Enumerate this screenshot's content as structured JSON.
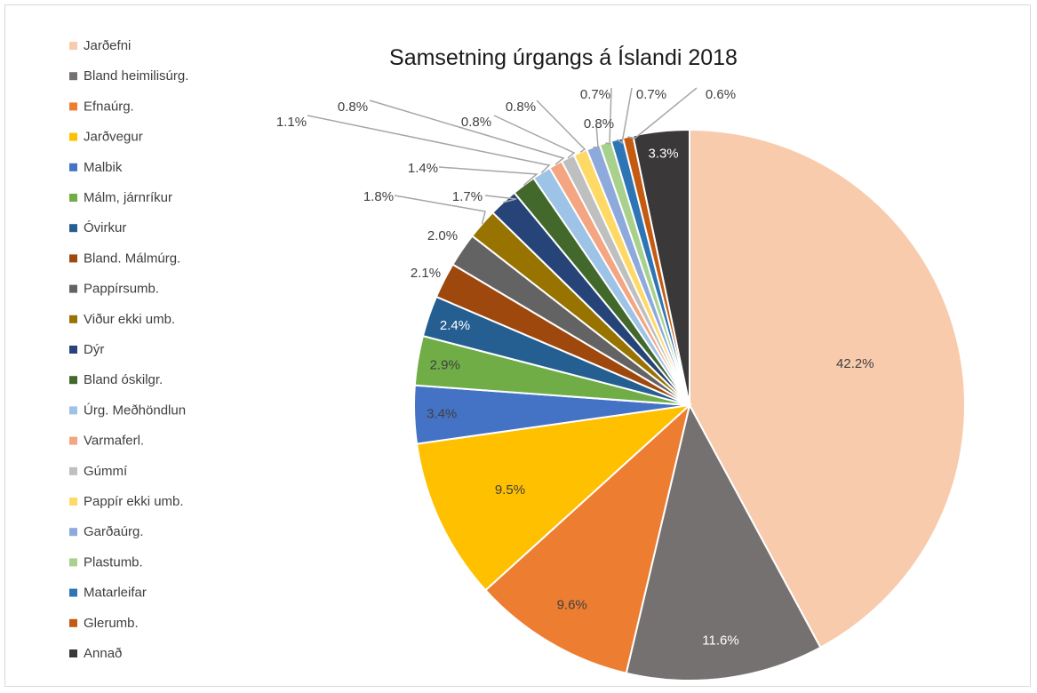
{
  "chart_data": {
    "type": "pie",
    "title": "Samsetning úrgangs á Íslandi 2018",
    "legend_position": "left",
    "slices": [
      {
        "name": "Jarðefni",
        "value": 42.2,
        "label": "42.2%",
        "color": "#F8CBAD"
      },
      {
        "name": "Bland heimilisúrg.",
        "value": 11.6,
        "label": "11.6%",
        "color": "#767171"
      },
      {
        "name": "Efnaúrg.",
        "value": 9.6,
        "label": "9.6%",
        "color": "#ED7D31"
      },
      {
        "name": "Jarðvegur",
        "value": 9.5,
        "label": "9.5%",
        "color": "#FFC000"
      },
      {
        "name": "Malbik",
        "value": 3.4,
        "label": "3.4%",
        "color": "#4472C4"
      },
      {
        "name": "Málm, járnríkur",
        "value": 2.9,
        "label": "2.9%",
        "color": "#70AD47"
      },
      {
        "name": "Óvirkur",
        "value": 2.4,
        "label": "2.4%",
        "color": "#255E91"
      },
      {
        "name": "Bland. Málmúrg.",
        "value": 2.1,
        "label": "2.1%",
        "color": "#9E480E"
      },
      {
        "name": "Pappírsumb.",
        "value": 2.0,
        "label": "2.0%",
        "color": "#636363"
      },
      {
        "name": "Viður ekki umb.",
        "value": 1.8,
        "label": "1.8%",
        "color": "#997300"
      },
      {
        "name": "Dýr",
        "value": 1.7,
        "label": "1.7%",
        "color": "#264478"
      },
      {
        "name": "Bland óskilgr.",
        "value": 1.4,
        "label": "1.4%",
        "color": "#43682B"
      },
      {
        "name": "Úrg. Meðhöndlun",
        "value": 1.1,
        "label": "1.1%",
        "color": "#9DC3E6"
      },
      {
        "name": "Varmaferl.",
        "value": 0.8,
        "label": "0.8%",
        "color": "#F4A582"
      },
      {
        "name": "Gúmmí",
        "value": 0.8,
        "label": "0.8%",
        "color": "#BFBFBF"
      },
      {
        "name": "Pappír ekki umb.",
        "value": 0.8,
        "label": "0.8%",
        "color": "#FFD966"
      },
      {
        "name": "Garðaúrg.",
        "value": 0.8,
        "label": "0.8%",
        "color": "#8EA9DB"
      },
      {
        "name": "Plastumb.",
        "value": 0.7,
        "label": "0.7%",
        "color": "#A9D18E"
      },
      {
        "name": "Matarleifar",
        "value": 0.7,
        "label": "0.7%",
        "color": "#2E75B6"
      },
      {
        "name": "Glerumb.",
        "value": 0.6,
        "label": "0.6%",
        "color": "#C55A11"
      },
      {
        "name": "Annað",
        "value": 3.3,
        "label": "3.3%",
        "color": "#3A3838"
      }
    ]
  }
}
